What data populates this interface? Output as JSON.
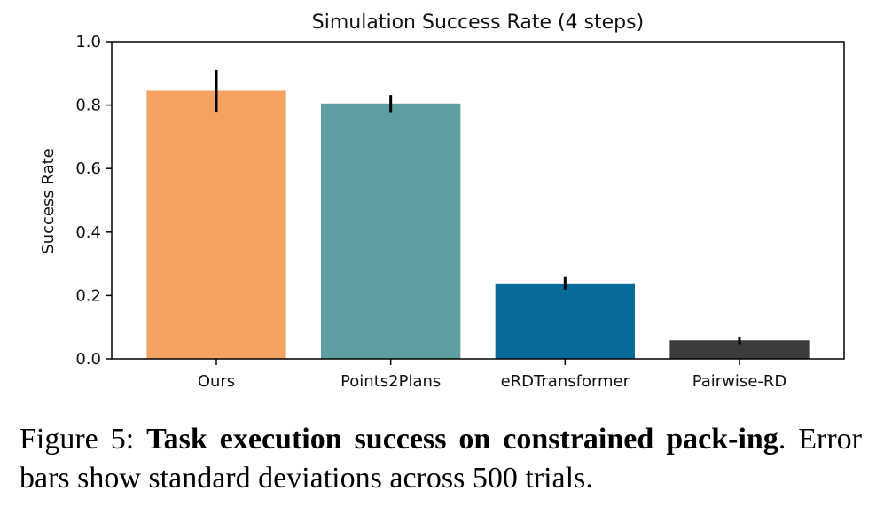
{
  "chart_data": {
    "type": "bar",
    "title": "Simulation Success Rate (4 steps)",
    "xlabel": "",
    "ylabel": "Success Rate",
    "ylim": [
      0,
      1.0
    ],
    "yticks": [
      "0.0",
      "0.2",
      "0.4",
      "0.6",
      "0.8",
      "1.0"
    ],
    "categories": [
      "Ours",
      "Points2Plans",
      "eRDTransformer",
      "Pairwise-RD"
    ],
    "values": [
      0.845,
      0.805,
      0.238,
      0.058
    ],
    "errors": [
      0.066,
      0.027,
      0.02,
      0.012
    ],
    "colors": [
      "#f4a261",
      "#5f9ea0",
      "#076a99",
      "#3a3d3b"
    ],
    "grid": false,
    "legend": "none"
  },
  "caption": {
    "prefix": "Figure 5: ",
    "bold": "Task execution success on constrained pack-ing",
    "rest": ". Error bars show standard deviations across 500 trials."
  }
}
